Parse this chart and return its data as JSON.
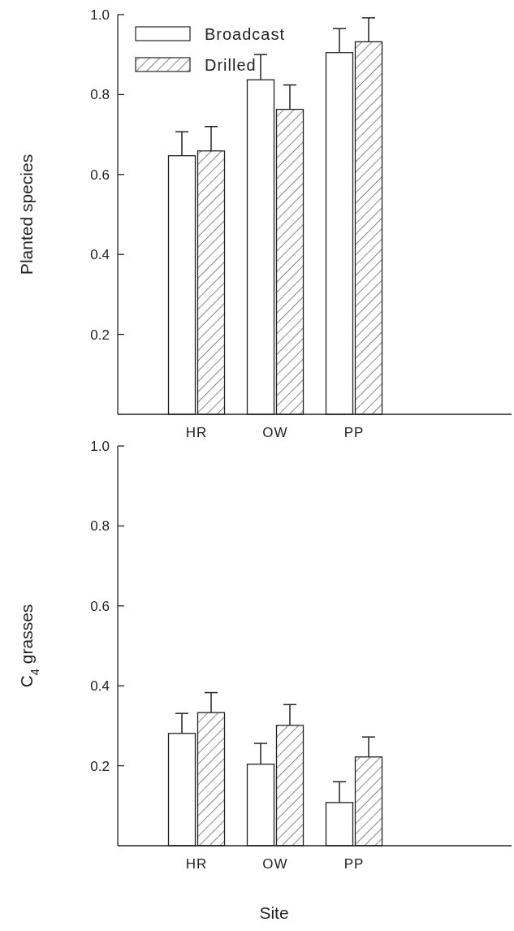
{
  "chart_data": [
    {
      "type": "bar",
      "ylabel": "Planted species",
      "categories": [
        "HR",
        "OW",
        "PP"
      ],
      "ylim": [
        0,
        1
      ],
      "yticks": [
        {
          "value": 0.2,
          "label": "0.2"
        },
        {
          "value": 0.4,
          "label": "0.4"
        },
        {
          "value": 0.6,
          "label": "0.6"
        },
        {
          "value": 0.8,
          "label": "0.8"
        },
        {
          "value": 1.0,
          "label": "1.0"
        }
      ],
      "legend": "top left",
      "series": [
        {
          "name": "Broadcast",
          "color": "#ffffff",
          "values": [
            0.647,
            0.837,
            0.905
          ],
          "errors": [
            [
              0.647,
              0.707
            ],
            [
              0.837,
              0.9
            ],
            [
              0.905,
              0.965
            ]
          ]
        },
        {
          "name": "Drilled",
          "color": "#222222",
          "values": [
            0.659,
            0.763,
            0.932
          ],
          "errors": [
            [
              0.659,
              0.72
            ],
            [
              0.763,
              0.824
            ],
            [
              0.932,
              0.992
            ]
          ]
        }
      ]
    },
    {
      "type": "bar",
      "ylabel": "C$_{4}$ grasses",
      "xlabel": "Site",
      "categories": [
        "HR",
        "OW",
        "PP"
      ],
      "ylim": [
        0,
        1
      ],
      "yticks": [
        {
          "value": 0.2,
          "label": "0.2"
        },
        {
          "value": 0.4,
          "label": "0.4"
        },
        {
          "value": 0.6,
          "label": "0.6"
        },
        {
          "value": 0.8,
          "label": "0.8"
        },
        {
          "value": 1.0,
          "label": "1.0"
        }
      ],
      "series": [
        {
          "color": "#ffffff",
          "values": [
            0.281,
            0.204,
            0.108
          ],
          "errors": [
            [
              0.281,
              0.331
            ],
            [
              0.204,
              0.256
            ],
            [
              0.108,
              0.16
            ]
          ]
        },
        {
          "color": "#222222",
          "values": [
            0.333,
            0.301,
            0.222
          ],
          "errors": [
            [
              0.333,
              0.383
            ],
            [
              0.301,
              0.353
            ],
            [
              0.222,
              0.272
            ]
          ]
        }
      ]
    }
  ]
}
